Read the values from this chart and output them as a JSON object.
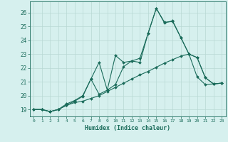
{
  "title": "",
  "xlabel": "Humidex (Indice chaleur)",
  "background_color": "#d6f0ee",
  "grid_color": "#b8d8d4",
  "line_color": "#1a6b5a",
  "xlim": [
    -0.5,
    23.5
  ],
  "ylim": [
    18.5,
    26.8
  ],
  "xticks": [
    0,
    1,
    2,
    3,
    4,
    5,
    6,
    7,
    8,
    9,
    10,
    11,
    12,
    13,
    14,
    15,
    16,
    17,
    18,
    19,
    20,
    21,
    22,
    23
  ],
  "yticks": [
    19,
    20,
    21,
    22,
    23,
    24,
    25,
    26
  ],
  "series": [
    {
      "x": [
        0,
        1,
        2,
        3,
        4,
        5,
        6,
        7,
        8,
        9,
        10,
        11,
        12,
        13,
        14,
        15,
        16,
        17,
        18,
        19,
        20,
        21,
        22,
        23
      ],
      "y": [
        19.0,
        19.0,
        18.85,
        19.0,
        19.3,
        19.5,
        19.6,
        19.8,
        20.0,
        20.3,
        20.6,
        20.9,
        21.2,
        21.5,
        21.75,
        22.05,
        22.35,
        22.6,
        22.85,
        23.0,
        22.75,
        21.3,
        20.85,
        20.9
      ]
    },
    {
      "x": [
        0,
        1,
        2,
        3,
        4,
        5,
        6,
        7,
        8,
        9,
        10,
        11,
        12,
        13,
        14,
        15,
        16,
        17,
        18,
        19,
        20,
        21,
        22,
        23
      ],
      "y": [
        19.0,
        19.0,
        18.85,
        19.0,
        19.4,
        19.65,
        20.0,
        21.2,
        20.1,
        20.4,
        20.8,
        22.1,
        22.5,
        22.4,
        24.5,
        26.3,
        25.3,
        25.35,
        24.2,
        23.0,
        21.35,
        20.8,
        20.85,
        20.9
      ]
    },
    {
      "x": [
        0,
        1,
        2,
        3,
        4,
        5,
        6,
        7,
        8,
        9,
        10,
        11,
        12,
        13,
        14,
        15,
        16,
        17,
        18,
        19,
        20,
        21,
        22,
        23
      ],
      "y": [
        19.0,
        19.0,
        18.85,
        19.0,
        19.3,
        19.6,
        19.95,
        21.2,
        22.4,
        20.4,
        22.9,
        22.4,
        22.5,
        22.7,
        24.5,
        26.3,
        25.25,
        25.4,
        24.2,
        23.0,
        22.75,
        21.3,
        20.85,
        20.9
      ]
    }
  ]
}
